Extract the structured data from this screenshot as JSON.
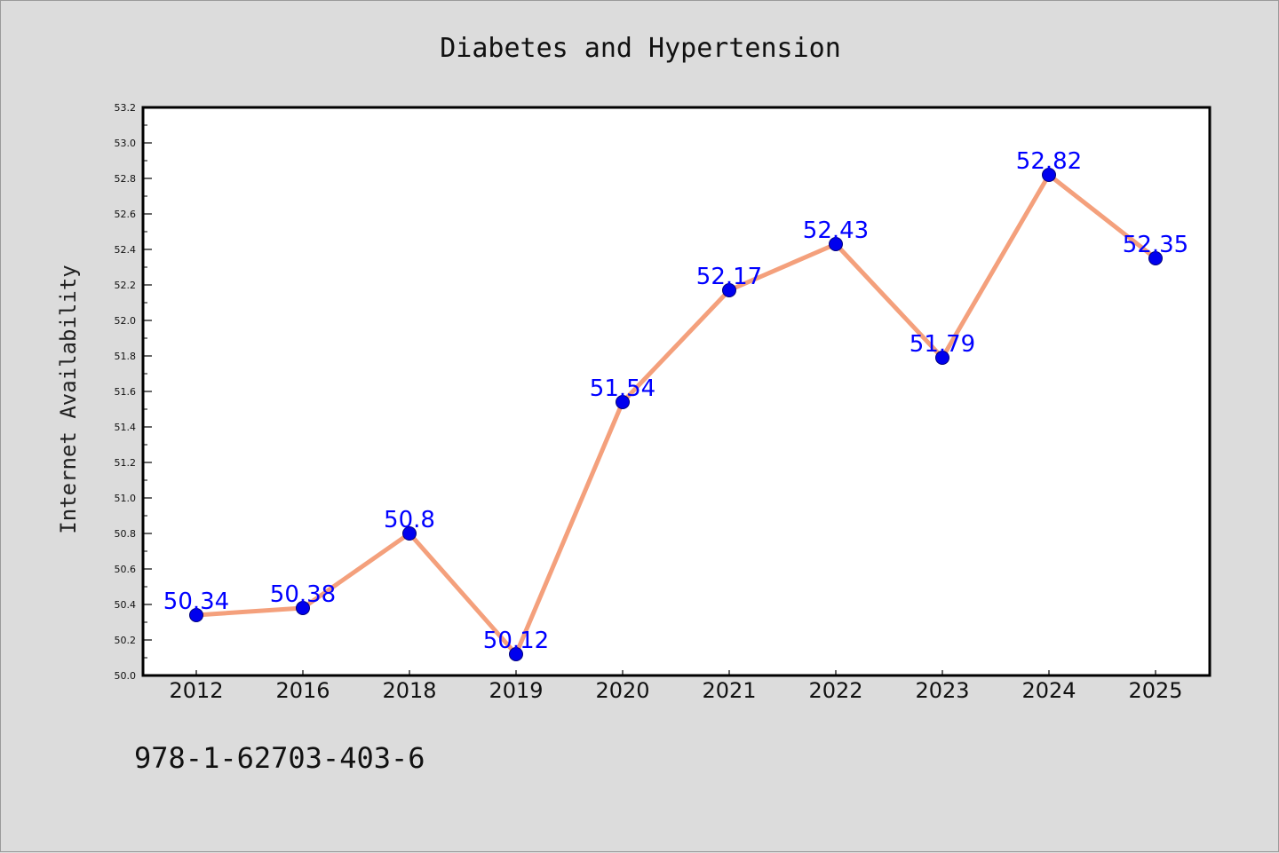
{
  "chart_data": {
    "type": "line",
    "title": "Diabetes and Hypertension",
    "xlabel": "",
    "ylabel": "Internet Availability",
    "categories": [
      "2012",
      "2016",
      "2018",
      "2019",
      "2020",
      "2021",
      "2022",
      "2023",
      "2024",
      "2025"
    ],
    "values": [
      50.34,
      50.38,
      50.8,
      50.12,
      51.54,
      52.17,
      52.43,
      51.79,
      52.82,
      52.35
    ],
    "data_labels": [
      "50.34",
      "50.38",
      "50.8",
      "50.12",
      "51.54",
      "52.17",
      "52.43",
      "51.79",
      "52.82",
      "52.35"
    ],
    "ylim": [
      50.0,
      53.2
    ],
    "yticks": [
      "50.0",
      "50.2",
      "50.4",
      "50.6",
      "50.8",
      "51.0",
      "51.2",
      "51.4",
      "51.6",
      "51.8",
      "52.0",
      "52.2",
      "52.4",
      "52.6",
      "52.8",
      "53.0",
      "53.2"
    ],
    "grid": false,
    "legend": "none",
    "colors": {
      "line": "#f4a07c",
      "marker": "#0000ee",
      "marker_edge": "#00007a",
      "label": "#0000ff",
      "plot_background": "#ffffff",
      "figure_background": "#dcdcdc"
    }
  },
  "footer": {
    "isbn": "978-1-62703-403-6"
  }
}
